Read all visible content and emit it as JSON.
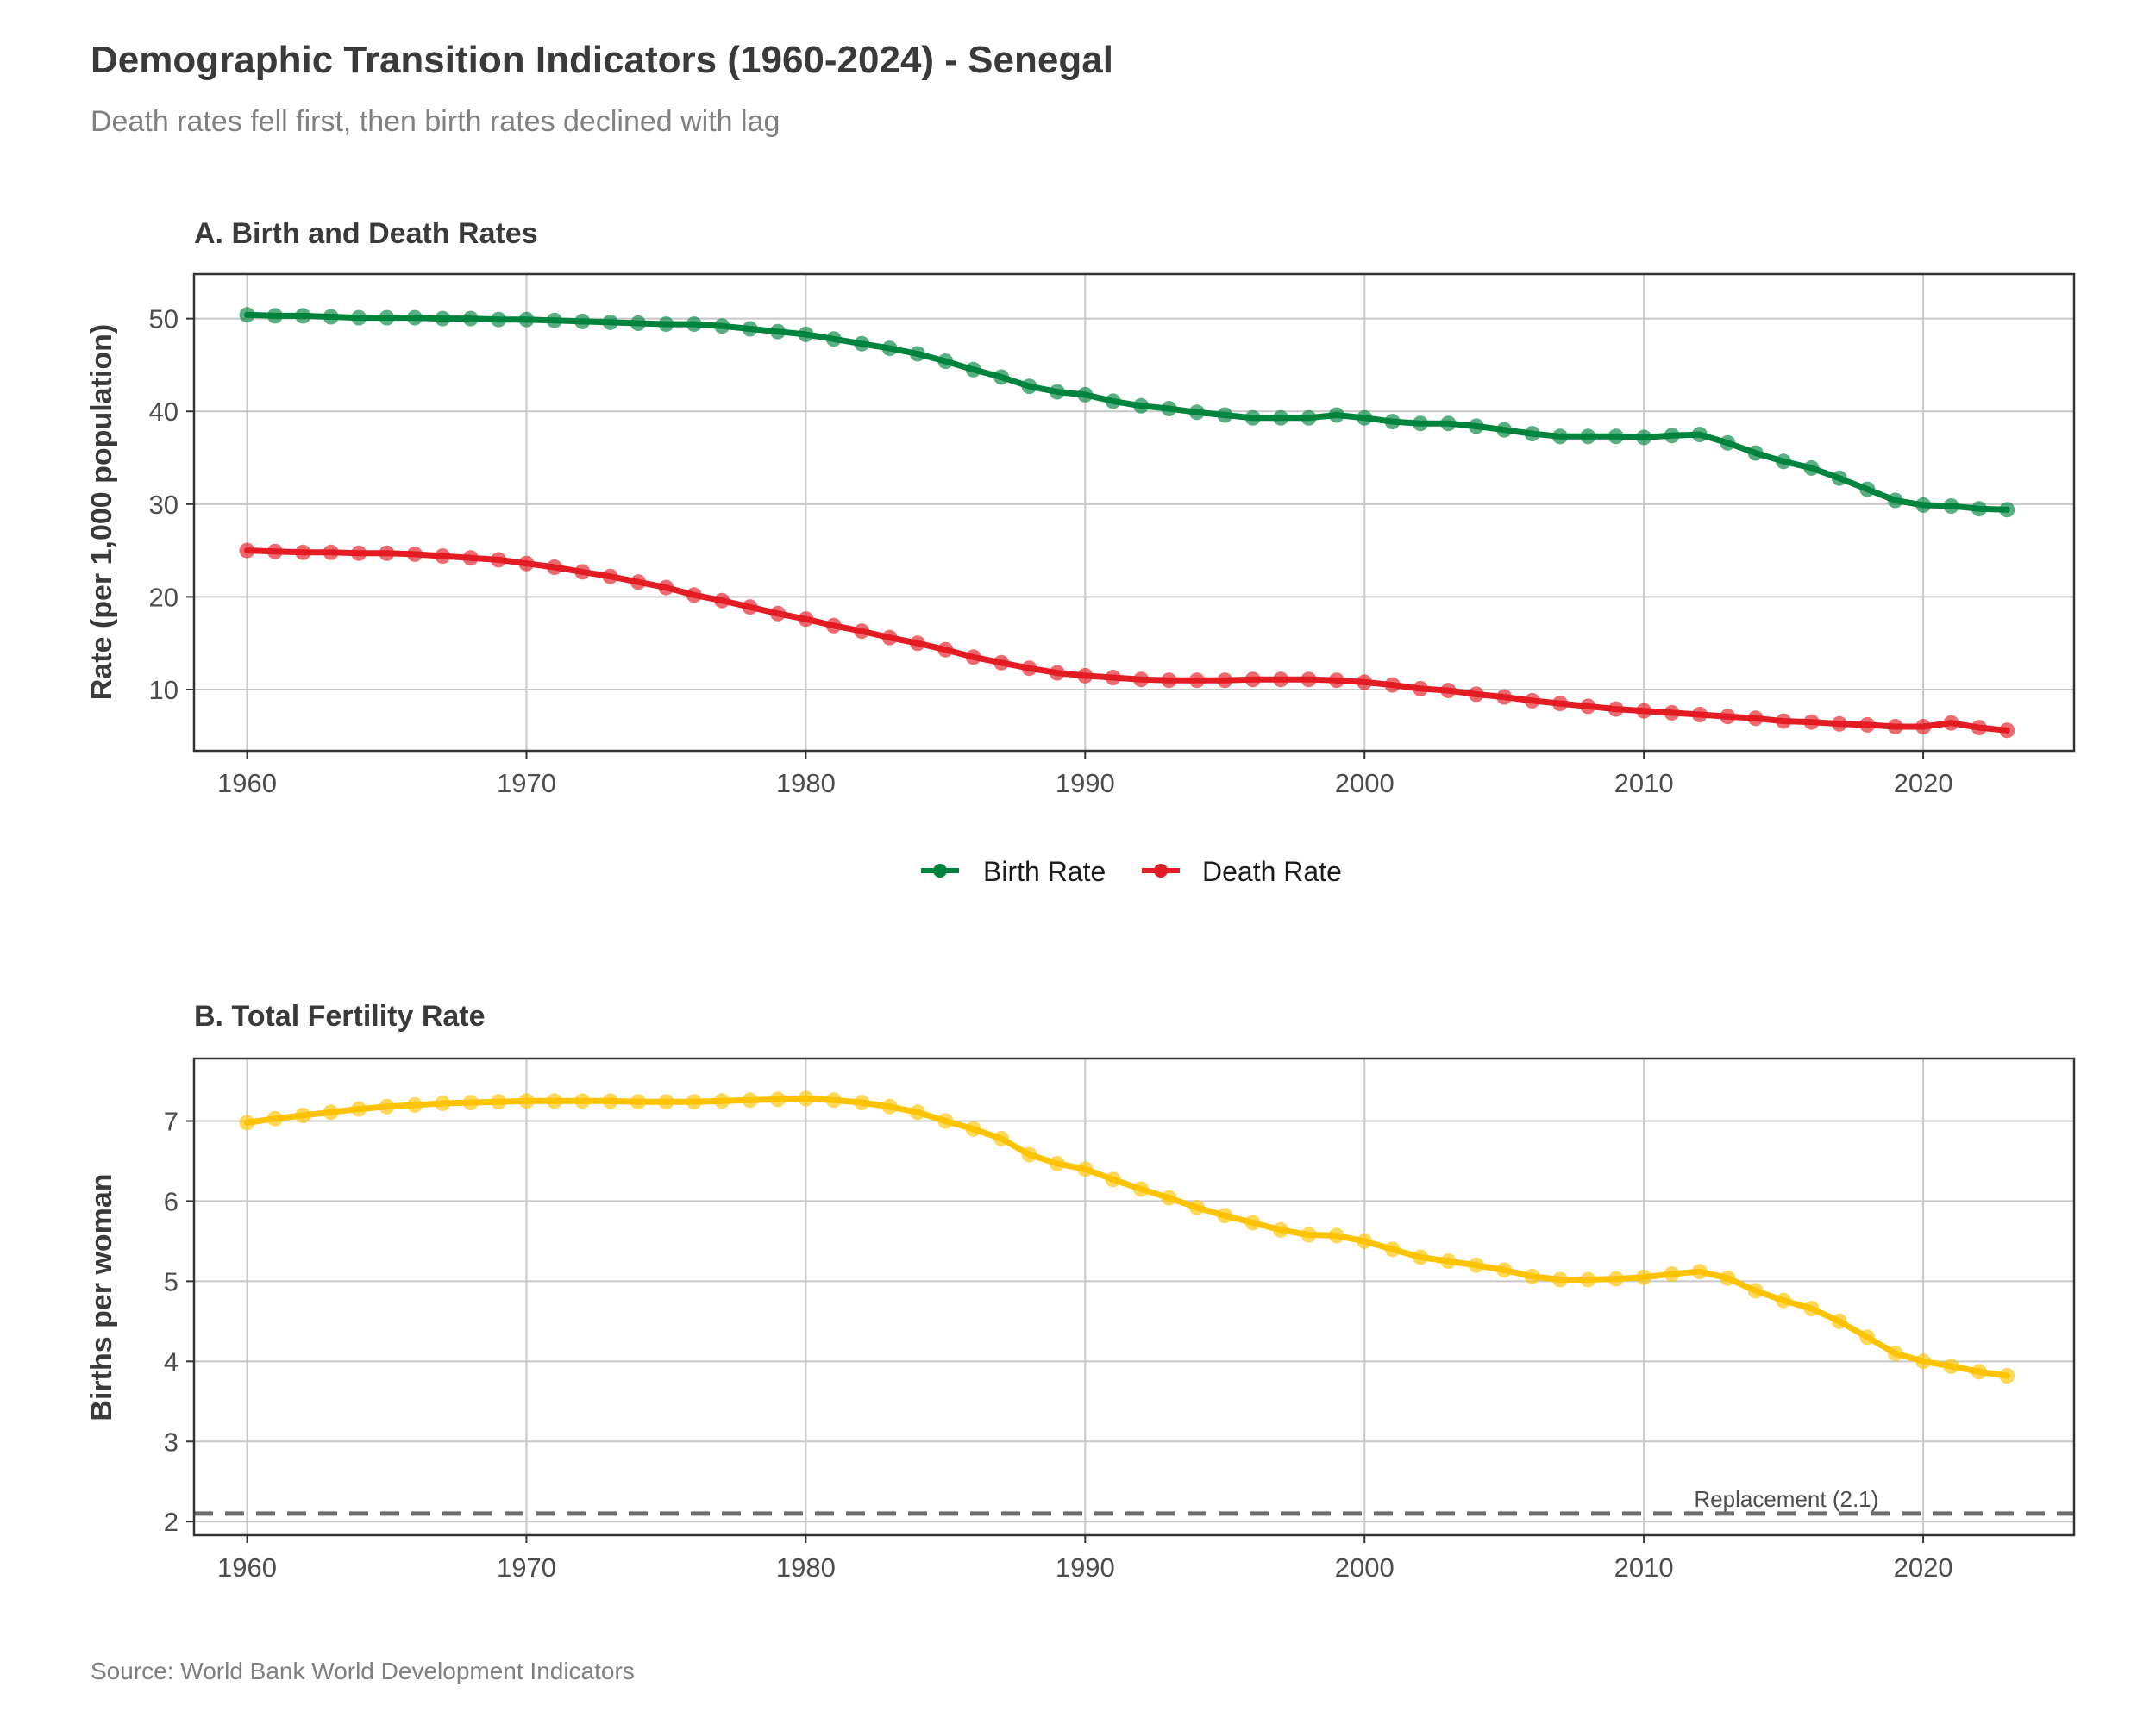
{
  "header": {
    "title": "Demographic Transition Indicators (1960-2024) - Senegal",
    "subtitle": "Death rates fell first, then birth rates declined with lag"
  },
  "caption": "Source: World Bank World Development Indicators",
  "colors": {
    "birth": "#00843d",
    "death": "#e31b23",
    "fertility": "#fdc300",
    "grid": "#c8c8c8",
    "border": "#333333",
    "replacement": "#6e6e6e"
  },
  "chart_data": [
    {
      "type": "line",
      "id": "panel-a",
      "title": "A. Birth and Death Rates",
      "xlabel": "",
      "ylabel": "Rate (per 1,000 population)",
      "xlim": [
        1958.1,
        2025.4
      ],
      "ylim": [
        3.4,
        54.8
      ],
      "xticks": [
        1960,
        1970,
        1980,
        1990,
        2000,
        2010,
        2020
      ],
      "yticks": [
        10,
        20,
        30,
        40,
        50
      ],
      "legend_position": "bottom",
      "x": [
        1960,
        1961,
        1962,
        1963,
        1964,
        1965,
        1966,
        1967,
        1968,
        1969,
        1970,
        1971,
        1972,
        1973,
        1974,
        1975,
        1976,
        1977,
        1978,
        1979,
        1980,
        1981,
        1982,
        1983,
        1984,
        1985,
        1986,
        1987,
        1988,
        1989,
        1990,
        1991,
        1992,
        1993,
        1994,
        1995,
        1996,
        1997,
        1998,
        1999,
        2000,
        2001,
        2002,
        2003,
        2004,
        2005,
        2006,
        2007,
        2008,
        2009,
        2010,
        2011,
        2012,
        2013,
        2014,
        2015,
        2016,
        2017,
        2018,
        2019,
        2020,
        2021,
        2022,
        2023
      ],
      "series": [
        {
          "name": "Birth Rate",
          "color": "#00843d",
          "values": [
            50.4,
            50.3,
            50.3,
            50.2,
            50.1,
            50.1,
            50.1,
            50.0,
            50.0,
            49.9,
            49.9,
            49.8,
            49.7,
            49.6,
            49.5,
            49.4,
            49.4,
            49.2,
            48.9,
            48.6,
            48.3,
            47.8,
            47.3,
            46.8,
            46.2,
            45.4,
            44.5,
            43.7,
            42.7,
            42.1,
            41.8,
            41.1,
            40.6,
            40.3,
            39.9,
            39.6,
            39.3,
            39.3,
            39.3,
            39.6,
            39.3,
            38.9,
            38.7,
            38.7,
            38.4,
            38.0,
            37.6,
            37.3,
            37.3,
            37.3,
            37.2,
            37.4,
            37.5,
            36.6,
            35.5,
            34.6,
            33.9,
            32.8,
            31.6,
            30.4,
            29.9,
            29.8,
            29.5,
            29.4
          ]
        },
        {
          "name": "Death Rate",
          "color": "#e31b23",
          "values": [
            25.0,
            24.9,
            24.8,
            24.8,
            24.7,
            24.7,
            24.6,
            24.4,
            24.2,
            24.0,
            23.6,
            23.2,
            22.7,
            22.2,
            21.6,
            21.0,
            20.2,
            19.6,
            18.9,
            18.2,
            17.6,
            16.9,
            16.3,
            15.6,
            15.0,
            14.3,
            13.5,
            12.9,
            12.3,
            11.8,
            11.5,
            11.3,
            11.1,
            11.0,
            11.0,
            11.0,
            11.1,
            11.1,
            11.1,
            11.0,
            10.8,
            10.5,
            10.1,
            9.9,
            9.5,
            9.2,
            8.8,
            8.5,
            8.2,
            7.9,
            7.7,
            7.5,
            7.3,
            7.1,
            6.9,
            6.6,
            6.5,
            6.3,
            6.2,
            6.0,
            6.0,
            6.4,
            5.9,
            5.6
          ]
        }
      ]
    },
    {
      "type": "line",
      "id": "panel-b",
      "title": "B. Total Fertility Rate",
      "xlabel": "",
      "ylabel": "Births per woman",
      "xlim": [
        1958.1,
        2025.4
      ],
      "ylim": [
        1.83,
        7.78
      ],
      "xticks": [
        1960,
        1970,
        1980,
        1990,
        2000,
        2010,
        2020
      ],
      "yticks": [
        2,
        3,
        4,
        5,
        6,
        7
      ],
      "replacement": {
        "value": 2.1,
        "label": "Replacement (2.1)"
      },
      "x": [
        1960,
        1961,
        1962,
        1963,
        1964,
        1965,
        1966,
        1967,
        1968,
        1969,
        1970,
        1971,
        1972,
        1973,
        1974,
        1975,
        1976,
        1977,
        1978,
        1979,
        1980,
        1981,
        1982,
        1983,
        1984,
        1985,
        1986,
        1987,
        1988,
        1989,
        1990,
        1991,
        1992,
        1993,
        1994,
        1995,
        1996,
        1997,
        1998,
        1999,
        2000,
        2001,
        2002,
        2003,
        2004,
        2005,
        2006,
        2007,
        2008,
        2009,
        2010,
        2011,
        2012,
        2013,
        2014,
        2015,
        2016,
        2017,
        2018,
        2019,
        2020,
        2021,
        2022,
        2023
      ],
      "series": [
        {
          "name": "Total Fertility Rate",
          "color": "#fdc300",
          "values": [
            6.98,
            7.03,
            7.07,
            7.11,
            7.15,
            7.18,
            7.2,
            7.22,
            7.23,
            7.24,
            7.25,
            7.25,
            7.25,
            7.25,
            7.24,
            7.24,
            7.24,
            7.25,
            7.26,
            7.27,
            7.28,
            7.26,
            7.23,
            7.18,
            7.11,
            7.0,
            6.9,
            6.78,
            6.58,
            6.47,
            6.4,
            6.27,
            6.15,
            6.04,
            5.92,
            5.82,
            5.73,
            5.64,
            5.58,
            5.57,
            5.5,
            5.4,
            5.3,
            5.25,
            5.2,
            5.14,
            5.06,
            5.02,
            5.02,
            5.03,
            5.05,
            5.09,
            5.12,
            5.04,
            4.88,
            4.76,
            4.66,
            4.5,
            4.3,
            4.1,
            4.0,
            3.94,
            3.87,
            3.82
          ]
        }
      ]
    }
  ]
}
